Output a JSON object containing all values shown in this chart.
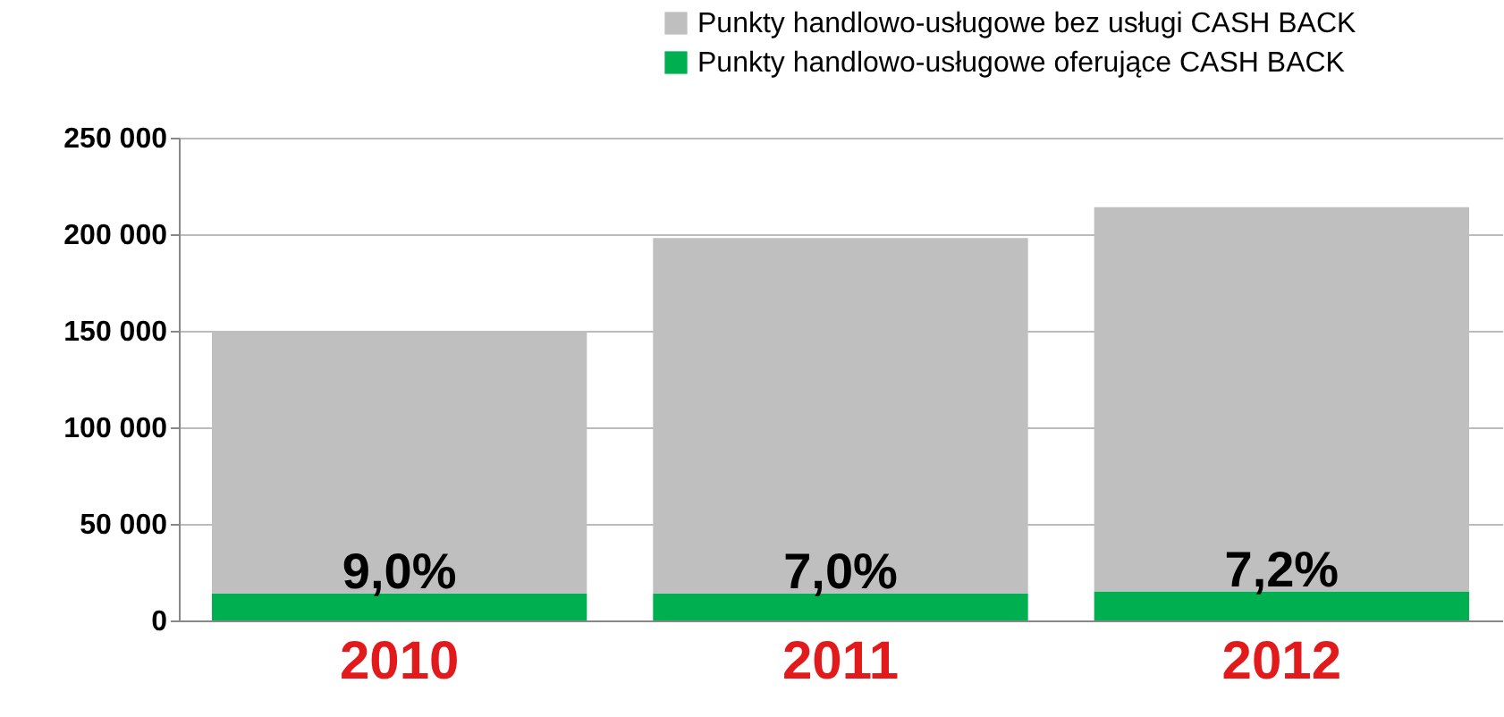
{
  "chart_data": {
    "type": "bar",
    "stacked": true,
    "categories": [
      "2010",
      "2011",
      "2012"
    ],
    "series": [
      {
        "name": "Punkty handlowo-usługowe oferujące CASH BACK",
        "color": "#00b050",
        "values": [
          14000,
          14000,
          15000
        ]
      },
      {
        "name": "Punkty handlowo-usługowe bez usługi CASH BACK",
        "color": "#bfbfbf",
        "values": [
          136000,
          184000,
          199000
        ]
      }
    ],
    "annotations": [
      {
        "text": "9,0%",
        "x": "2010",
        "y": 14000
      },
      {
        "text": "7,0%",
        "x": "2011",
        "y": 14000
      },
      {
        "text": "7,2%",
        "x": "2012",
        "y": 15000
      }
    ],
    "ylim": [
      0,
      250000
    ],
    "yticks": [
      {
        "value": 0,
        "label": "0"
      },
      {
        "value": 50000,
        "label": "50 000"
      },
      {
        "value": 100000,
        "label": "100 000"
      },
      {
        "value": 150000,
        "label": "150 000"
      },
      {
        "value": 200000,
        "label": "200 000"
      },
      {
        "value": 250000,
        "label": "250 000"
      }
    ],
    "grid": "y",
    "legend": "top right"
  }
}
